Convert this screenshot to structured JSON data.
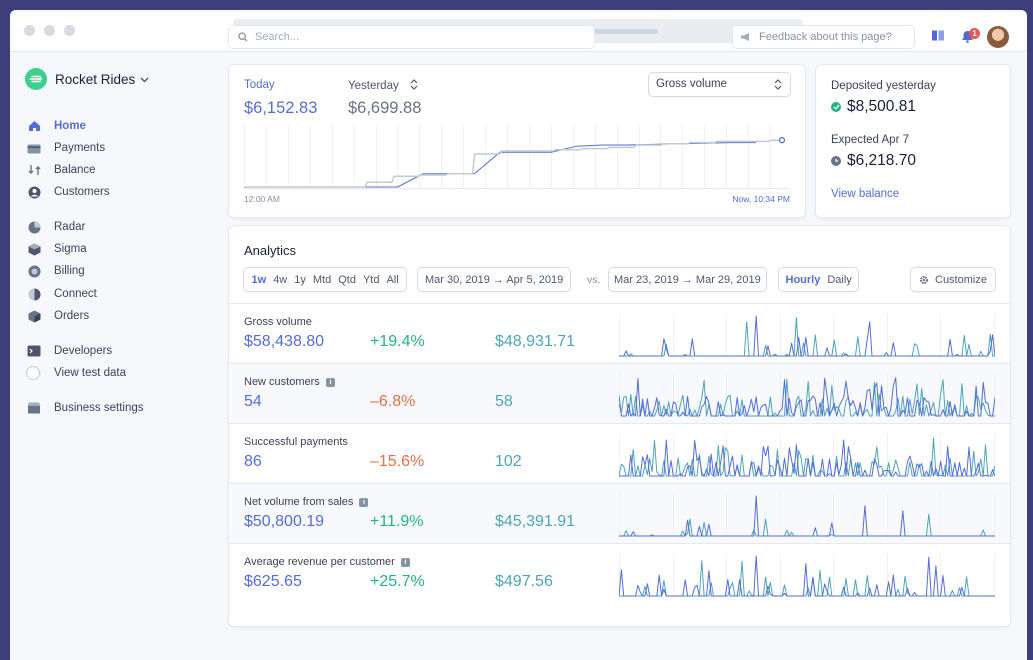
{
  "app": {
    "name": "Rocket Rides"
  },
  "sidebar": {
    "groups": [
      [
        {
          "label": "Home",
          "icon": "home-icon",
          "active": true
        },
        {
          "label": "Payments",
          "icon": "payments-icon"
        },
        {
          "label": "Balance",
          "icon": "balance-icon"
        },
        {
          "label": "Customers",
          "icon": "customers-icon"
        }
      ],
      [
        {
          "label": "Radar",
          "icon": "radar-icon"
        },
        {
          "label": "Sigma",
          "icon": "sigma-icon"
        },
        {
          "label": "Billing",
          "icon": "billing-icon"
        },
        {
          "label": "Connect",
          "icon": "connect-icon"
        },
        {
          "label": "Orders",
          "icon": "orders-icon"
        }
      ],
      [
        {
          "label": "Developers",
          "icon": "developers-icon"
        },
        {
          "label": "View test data",
          "icon": "toggle"
        }
      ],
      [
        {
          "label": "Business settings",
          "icon": "business-settings-icon"
        }
      ]
    ]
  },
  "header": {
    "search_placeholder": "Search...",
    "feedback_label": "Feedback about this page?",
    "notification_count": "1"
  },
  "gross_volume": {
    "today_label": "Today",
    "today_value": "$6,152.83",
    "yesterday_label": "Yesterday",
    "yesterday_value": "$6,699.88",
    "metric_select": "Gross volume",
    "axis_start": "12:00 AM",
    "axis_end": "Now, 10:34 PM",
    "chart_data": {
      "type": "line",
      "series": [
        {
          "values": [
            0,
            0,
            0,
            0,
            0,
            0.08,
            0.18,
            0.2,
            0.22,
            0.55,
            0.6,
            0.6,
            0.62,
            0.64,
            0.66,
            0.7,
            0.72,
            0.74,
            0.76,
            0.76,
            0.78
          ]
        },
        {
          "values": [
            0,
            0,
            0,
            0,
            0,
            0,
            0,
            0.22,
            0.22,
            0.22,
            0.58,
            0.58,
            0.58,
            0.68,
            0.7,
            0.7,
            0.71,
            0.72,
            0.73,
            0.74,
            0.74
          ]
        }
      ],
      "ylim": [
        0,
        1
      ]
    }
  },
  "balance": {
    "deposited_label": "Deposited yesterday",
    "deposited_value": "$8,500.81",
    "expected_label": "Expected Apr 7",
    "expected_value": "$6,218.70",
    "link": "View balance"
  },
  "analytics": {
    "title": "Analytics",
    "ranges": [
      "1w",
      "4w",
      "1y",
      "Mtd",
      "Qtd",
      "Ytd",
      "All"
    ],
    "active_range": "1w",
    "current_period": "Mar 30, 2019 → Apr 5, 2019",
    "vs_label": "vs.",
    "previous_period": "Mar 23, 2019 → Mar 29, 2019",
    "granularity": [
      "Hourly",
      "Daily"
    ],
    "active_granularity": "Hourly",
    "customize_label": "Customize",
    "metrics": [
      {
        "label": "Gross volume",
        "value": "$58,438.80",
        "change": "+19.4%",
        "direction": "up",
        "previous": "$48,931.71",
        "info": false
      },
      {
        "label": "New customers",
        "value": "54",
        "change": "–6.8%",
        "direction": "down",
        "previous": "58",
        "info": true
      },
      {
        "label": "Successful payments",
        "value": "86",
        "change": "–15.6%",
        "direction": "down",
        "previous": "102",
        "info": false
      },
      {
        "label": "Net volume from sales",
        "value": "$50,800.19",
        "change": "+11.9%",
        "direction": "up",
        "previous": "$45,391.91",
        "info": true
      },
      {
        "label": "Average revenue per customer",
        "value": "$625.65",
        "change": "+25.7%",
        "direction": "up",
        "previous": "$497.56",
        "info": true
      }
    ]
  },
  "colors": {
    "accent": "#556cd6",
    "previous": "#4da4b8",
    "positive": "#24b47e",
    "negative": "#e56f4a",
    "brand": "#3ecf8e"
  }
}
